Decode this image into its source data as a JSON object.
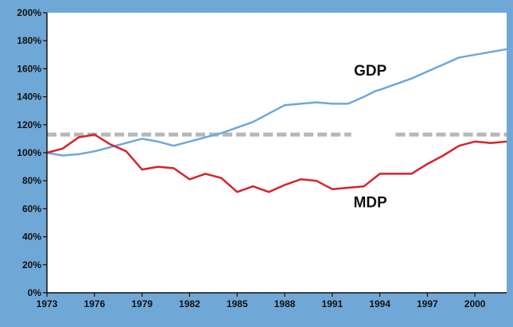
{
  "chart_data": {
    "type": "line",
    "title": "",
    "xlabel": "",
    "ylabel": "",
    "xlim": [
      1973,
      2002
    ],
    "ylim": [
      0,
      200
    ],
    "x_ticks": [
      1973,
      1976,
      1979,
      1982,
      1985,
      1988,
      1991,
      1994,
      1997,
      2000
    ],
    "x_tick_labels": [
      "1973",
      "1976",
      "1979",
      "1982",
      "1985",
      "1988",
      "1991",
      "1994",
      "1997",
      "2000"
    ],
    "y_ticks": [
      0,
      20,
      40,
      60,
      80,
      100,
      120,
      140,
      160,
      180,
      200
    ],
    "y_tick_labels": [
      "0%",
      "20%",
      "40%",
      "60%",
      "80%",
      "100%",
      "120%",
      "140%",
      "160%",
      "180%",
      "200%"
    ],
    "grid": false,
    "legend": "none",
    "reference_line": {
      "y": 113,
      "color": "#b8b8b8",
      "style": "dashed"
    },
    "series": [
      {
        "name": "GDP",
        "color": "#6fa8d6",
        "label_pos": {
          "x": 1993.4,
          "y": 155
        },
        "points": [
          [
            1973,
            100
          ],
          [
            1974,
            98
          ],
          [
            1975,
            99
          ],
          [
            1976,
            101
          ],
          [
            1977,
            104
          ],
          [
            1978,
            107
          ],
          [
            1979,
            110
          ],
          [
            1980,
            108
          ],
          [
            1981,
            105
          ],
          [
            1982,
            108
          ],
          [
            1983,
            111
          ],
          [
            1984,
            114
          ],
          [
            1985,
            118
          ],
          [
            1986,
            122
          ],
          [
            1987,
            128
          ],
          [
            1988,
            134
          ],
          [
            1989,
            135
          ],
          [
            1990,
            136
          ],
          [
            1991,
            135
          ],
          [
            1992,
            135
          ],
          [
            1993,
            140
          ],
          [
            1993.7,
            144
          ],
          [
            1994,
            145
          ],
          [
            1995,
            149
          ],
          [
            1996,
            153
          ],
          [
            1997,
            158
          ],
          [
            1998,
            163
          ],
          [
            1999,
            168
          ],
          [
            2000,
            170
          ],
          [
            2001,
            172
          ],
          [
            2002,
            174
          ]
        ]
      },
      {
        "name": "MDP",
        "color": "#d8232a",
        "label_pos": {
          "x": 1993.4,
          "y": 61
        },
        "points": [
          [
            1973,
            100
          ],
          [
            1974,
            103
          ],
          [
            1975,
            111
          ],
          [
            1976,
            113
          ],
          [
            1977,
            106
          ],
          [
            1978,
            101
          ],
          [
            1979,
            88
          ],
          [
            1980,
            90
          ],
          [
            1981,
            89
          ],
          [
            1982,
            81
          ],
          [
            1983,
            85
          ],
          [
            1984,
            82
          ],
          [
            1985,
            72
          ],
          [
            1986,
            76
          ],
          [
            1987,
            72
          ],
          [
            1988,
            77
          ],
          [
            1989,
            81
          ],
          [
            1990,
            80
          ],
          [
            1991,
            74
          ],
          [
            1992,
            75
          ],
          [
            1993,
            76
          ],
          [
            1994,
            85
          ],
          [
            1995,
            85
          ],
          [
            1996,
            85
          ],
          [
            1997,
            92
          ],
          [
            1998,
            98
          ],
          [
            1999,
            105
          ],
          [
            2000,
            108
          ],
          [
            2001,
            107
          ],
          [
            2002,
            108
          ]
        ]
      }
    ]
  }
}
